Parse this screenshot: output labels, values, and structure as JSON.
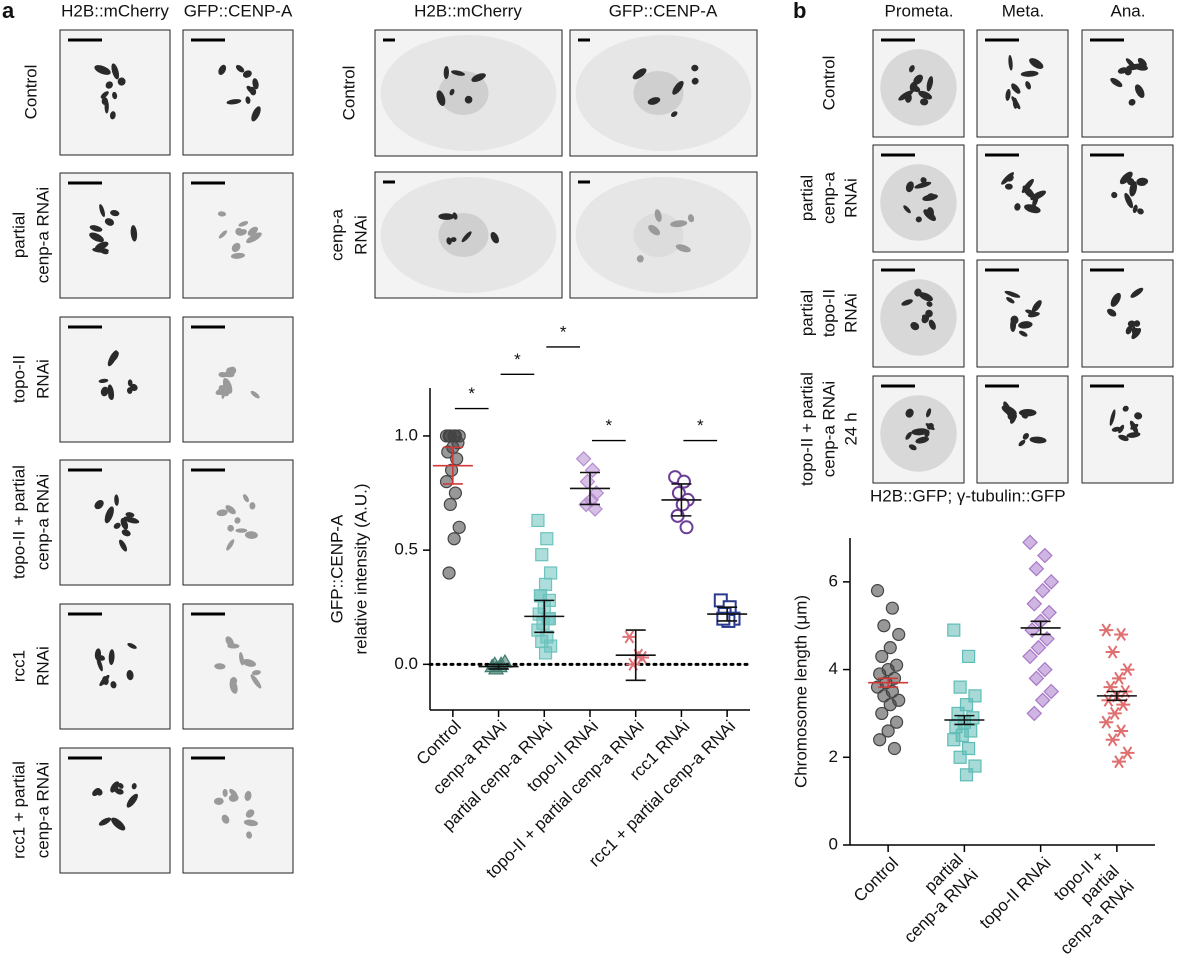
{
  "panel_a": {
    "letter": "a",
    "col_labels": [
      "H2B::mCherry",
      "GFP::CENP-A"
    ],
    "row_labels": [
      [
        "Control"
      ],
      [
        "partial",
        "cenp-a RNAi"
      ],
      [
        "topo-II",
        "RNAi"
      ],
      [
        "topo-II + partial",
        "cenp-a RNAi"
      ],
      [
        "rcc1",
        "RNAi"
      ],
      [
        "rcc1 + partial",
        "cenp-a RNAi"
      ]
    ]
  },
  "panel_a_embryo": {
    "col_labels": [
      "H2B::mCherry",
      "GFP::CENP-A"
    ],
    "row_labels": [
      [
        "Control"
      ],
      [
        "cenp-a",
        "RNAi"
      ]
    ]
  },
  "panel_b": {
    "letter": "b",
    "col_labels": [
      "Prometa.",
      "Meta.",
      "Ana."
    ],
    "row_labels": [
      [
        "Control"
      ],
      [
        "partial",
        "cenp-a",
        "RNAi"
      ],
      [
        "partial",
        "topo-II",
        "RNAi"
      ],
      [
        "topo-II + partial",
        "cenp-a RNAi",
        "24 h"
      ]
    ],
    "caption": "H2B::GFP; γ-tubulin::GFP"
  },
  "chart_data": [
    {
      "type": "dot",
      "ylabel": [
        "GFP::CENP-A",
        "relative intensity (A.U.)"
      ],
      "categories": [
        "Control",
        "cenp-a RNAi",
        "partial cenp-a RNAi",
        "topo-II RNAi",
        "topo-II + partial cenp-a RNAi",
        "rcc1 RNAi",
        "rcc1 + partial cenp-a RNAi"
      ],
      "colors": [
        "#444444",
        "#3e7a6e",
        "#6cc3bd",
        "#b58ccf",
        "#e0737a",
        "#6e3f98",
        "#2a3a8f"
      ],
      "markers": [
        "circle",
        "triangle",
        "square",
        "diamond",
        "star",
        "open-circle",
        "open-square"
      ],
      "mean_colors": [
        "#d23a3a",
        "#111111",
        "#111111",
        "#111111",
        "#111111",
        "#111111",
        "#111111"
      ],
      "points": [
        [
          1,
          1,
          1,
          1,
          1,
          1,
          0.97,
          0.95,
          0.93,
          0.9,
          0.85,
          0.8,
          0.75,
          0.7,
          0.6,
          0.55,
          0.4
        ],
        [
          -0.01,
          0,
          -0.02,
          0.01,
          -0.01,
          0
        ],
        [
          0.63,
          0.55,
          0.48,
          0.4,
          0.35,
          0.3,
          0.28,
          0.25,
          0.22,
          0.2,
          0.18,
          0.15,
          0.12,
          0.1,
          0.08,
          0.05,
          0.3,
          0.2
        ],
        [
          0.9,
          0.85,
          0.8,
          0.75,
          0.72,
          0.7,
          0.68
        ],
        [
          0.12,
          0.04,
          0,
          0.03
        ],
        [
          0.82,
          0.8,
          0.75,
          0.72,
          0.7,
          0.65,
          0.6
        ],
        [
          0.28,
          0.25,
          0.22,
          0.2,
          0.19,
          0.2
        ]
      ],
      "means": [
        0.87,
        -0.01,
        0.21,
        0.77,
        0.04,
        0.72,
        0.22
      ],
      "errors": [
        0.08,
        0.01,
        0.07,
        0.07,
        0.11,
        0.07,
        0.03
      ],
      "ylim": [
        -0.2,
        1.21
      ],
      "yticks": [
        {
          "value": 0,
          "label": "0.0"
        },
        {
          "value": 0.5,
          "label": "0.5"
        },
        {
          "value": 1,
          "label": "1.0"
        }
      ],
      "reference_line": 0,
      "significance": [
        {
          "label": "*",
          "from": 0,
          "to": 1,
          "y": 1.12
        },
        {
          "label": "*",
          "from": 1,
          "to": 2,
          "y": 1.27
        },
        {
          "label": "*",
          "from": 2,
          "to": 3,
          "y": 1.39
        },
        {
          "label": "*",
          "from": 3,
          "to": 4,
          "y": 0.98
        },
        {
          "label": "*",
          "from": 5,
          "to": 6,
          "y": 0.98
        }
      ]
    },
    {
      "type": "dot",
      "ylabel": "Chromosome length (μm)",
      "categories": [
        [
          "Control"
        ],
        [
          "partial",
          "cenp-a RNAi"
        ],
        [
          "topo-II RNAi"
        ],
        [
          "topo-II +",
          "partial",
          "cenp-a RNAi"
        ]
      ],
      "colors": [
        "#444444",
        "#5fbcb6",
        "#a878c8",
        "#e07070"
      ],
      "markers": [
        "circle",
        "square",
        "diamond",
        "star"
      ],
      "mean_colors": [
        "#d23a3a",
        "#111111",
        "#111111",
        "#111111"
      ],
      "points": [
        [
          5.8,
          5.4,
          5,
          4.8,
          4.5,
          4.3,
          4.1,
          4,
          3.9,
          3.8,
          3.7,
          3.6,
          3.5,
          3.4,
          3.3,
          3.2,
          3,
          2.8,
          2.6,
          2.4,
          2.2
        ],
        [
          4.9,
          4.3,
          3.6,
          3.4,
          3.2,
          3,
          2.9,
          2.8,
          2.7,
          2.6,
          2.5,
          2.4,
          2.2,
          2,
          1.8,
          1.6
        ],
        [
          6.9,
          6.6,
          6.3,
          6,
          5.8,
          5.5,
          5.3,
          5.1,
          4.9,
          4.7,
          4.5,
          4.3,
          4,
          3.8,
          3.5,
          3.3,
          3
        ],
        [
          4.9,
          4.8,
          4.4,
          4,
          3.8,
          3.6,
          3.5,
          3.4,
          3.3,
          3.2,
          3,
          2.8,
          2.6,
          2.4,
          2.1,
          1.9
        ]
      ],
      "means": [
        3.7,
        2.85,
        4.95,
        3.4
      ],
      "errors": [
        0.1,
        0.1,
        0.15,
        0.1
      ],
      "ylim": [
        0,
        7
      ],
      "yticks": [
        0,
        2,
        4,
        6
      ]
    }
  ]
}
